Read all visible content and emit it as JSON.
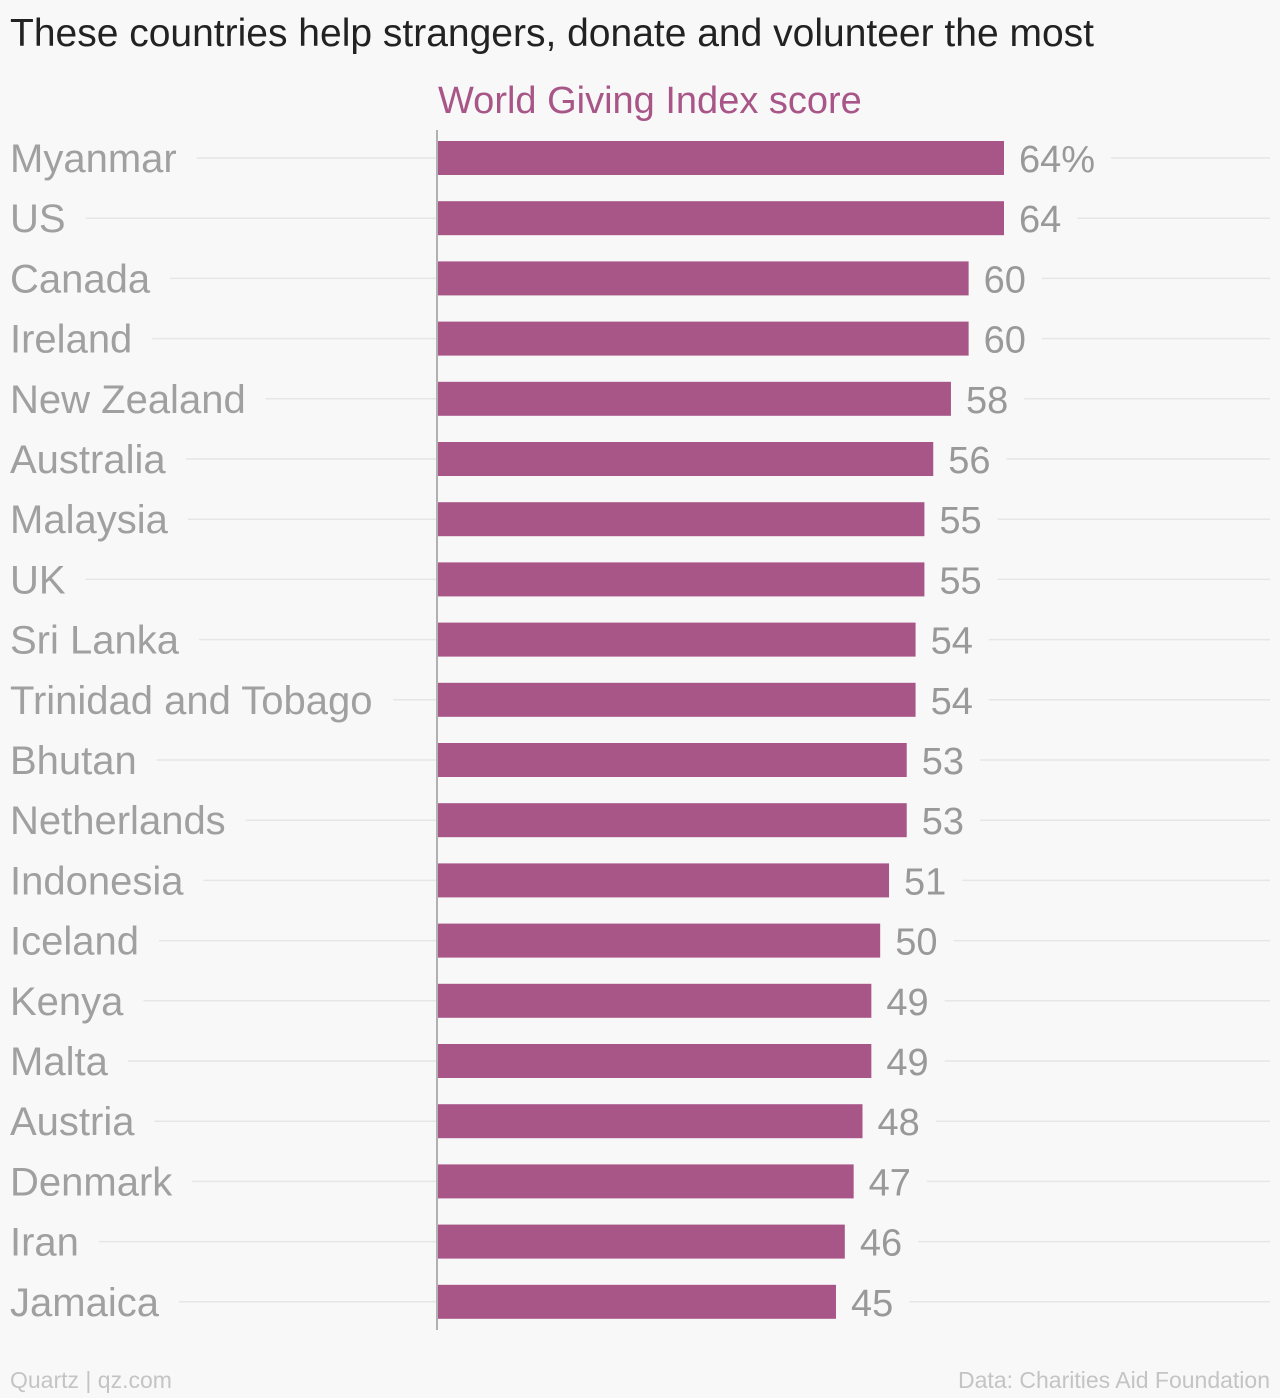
{
  "title": "These countries help strangers, donate and volunteer the most",
  "credit": "Quartz | qz.com",
  "source": "Data: Charities Aid Foundation",
  "colors": {
    "bar": "#a85587",
    "series_label": "#a85587",
    "category_text": "#a0a0a0",
    "value_text": "#999999",
    "gridline": "#e6e6e6",
    "axis": "#999999"
  },
  "chart_data": {
    "type": "bar",
    "orientation": "horizontal",
    "series": [
      {
        "name": "World Giving Index score",
        "values": [
          64,
          64,
          60,
          60,
          58,
          56,
          55,
          55,
          54,
          54,
          53,
          53,
          51,
          50,
          49,
          49,
          48,
          47,
          46,
          45
        ]
      }
    ],
    "categories": [
      "Myanmar",
      "US",
      "Canada",
      "Ireland",
      "New Zealand",
      "Australia",
      "Malaysia",
      "UK",
      "Sri Lanka",
      "Trinidad and Tobago",
      "Bhutan",
      "Netherlands",
      "Indonesia",
      "Iceland",
      "Kenya",
      "Malta",
      "Austria",
      "Denmark",
      "Iran",
      "Jamaica"
    ],
    "value_labels": [
      "64%",
      "64",
      "60",
      "60",
      "58",
      "56",
      "55",
      "55",
      "54",
      "54",
      "53",
      "53",
      "51",
      "50",
      "49",
      "49",
      "48",
      "47",
      "46",
      "45"
    ],
    "value_unit": "%",
    "xlim": [
      0,
      64
    ],
    "grid": true,
    "legend": "top"
  }
}
